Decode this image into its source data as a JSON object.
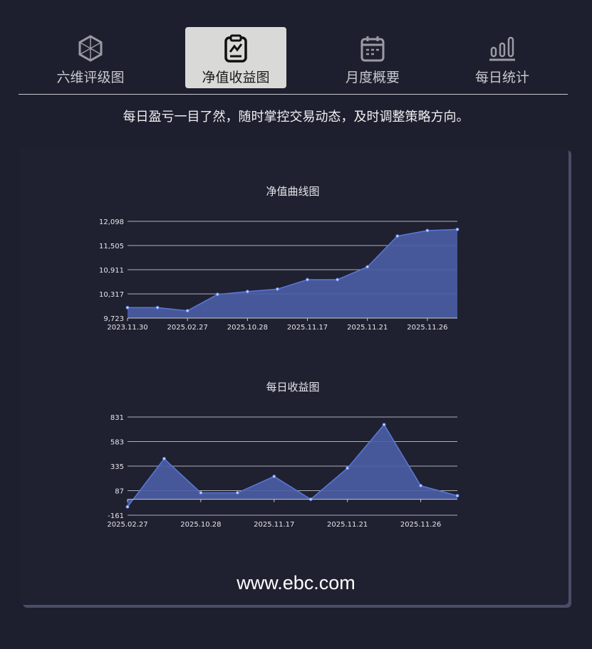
{
  "tabs": [
    {
      "label": "六维评级图",
      "icon": "hexagon-icon",
      "active": false
    },
    {
      "label": "净值收益图",
      "icon": "clipboard-chart-icon",
      "active": true
    },
    {
      "label": "月度概要",
      "icon": "calendar-icon",
      "active": false
    },
    {
      "label": "每日统计",
      "icon": "bar-chart-icon",
      "active": false
    }
  ],
  "tagline": "每日盈亏一目了然，随时掌控交易动态，及时调整策略方向。",
  "footer": {
    "url": "www.ebc.com"
  },
  "colors": {
    "background": "#1d1f2e",
    "area_fill": "#4a5ea6",
    "line": "#5b78d8",
    "grid": "#c9c9cf"
  },
  "chart_data": [
    {
      "type": "area",
      "title": "净值曲线图",
      "categories": [
        "2023.11.30",
        "",
        "2025.02.27",
        "",
        "2025.10.28",
        "",
        "2025.11.17",
        "",
        "2025.11.21",
        "",
        "2025.11.26",
        ""
      ],
      "values": [
        9980,
        9980,
        9903,
        10305,
        10374,
        10434,
        10666,
        10666,
        10980,
        11736,
        11871,
        11900
      ],
      "yticks": [
        "9,723",
        "10,317",
        "10,911",
        "11,505",
        "12,098"
      ],
      "ylim": [
        9723,
        12098
      ],
      "grid": true
    },
    {
      "type": "area",
      "title": "每日收益图",
      "categories": [
        "2025.02.27",
        "",
        "2025.10.28",
        "",
        "2025.11.17",
        "",
        "2025.11.21",
        "",
        "2025.11.26",
        ""
      ],
      "values": [
        -76,
        410,
        65,
        65,
        231,
        0,
        314,
        754,
        137,
        36
      ],
      "yticks": [
        "-161",
        "87",
        "335",
        "583",
        "831"
      ],
      "ylim": [
        -161,
        831
      ],
      "grid": true
    }
  ]
}
